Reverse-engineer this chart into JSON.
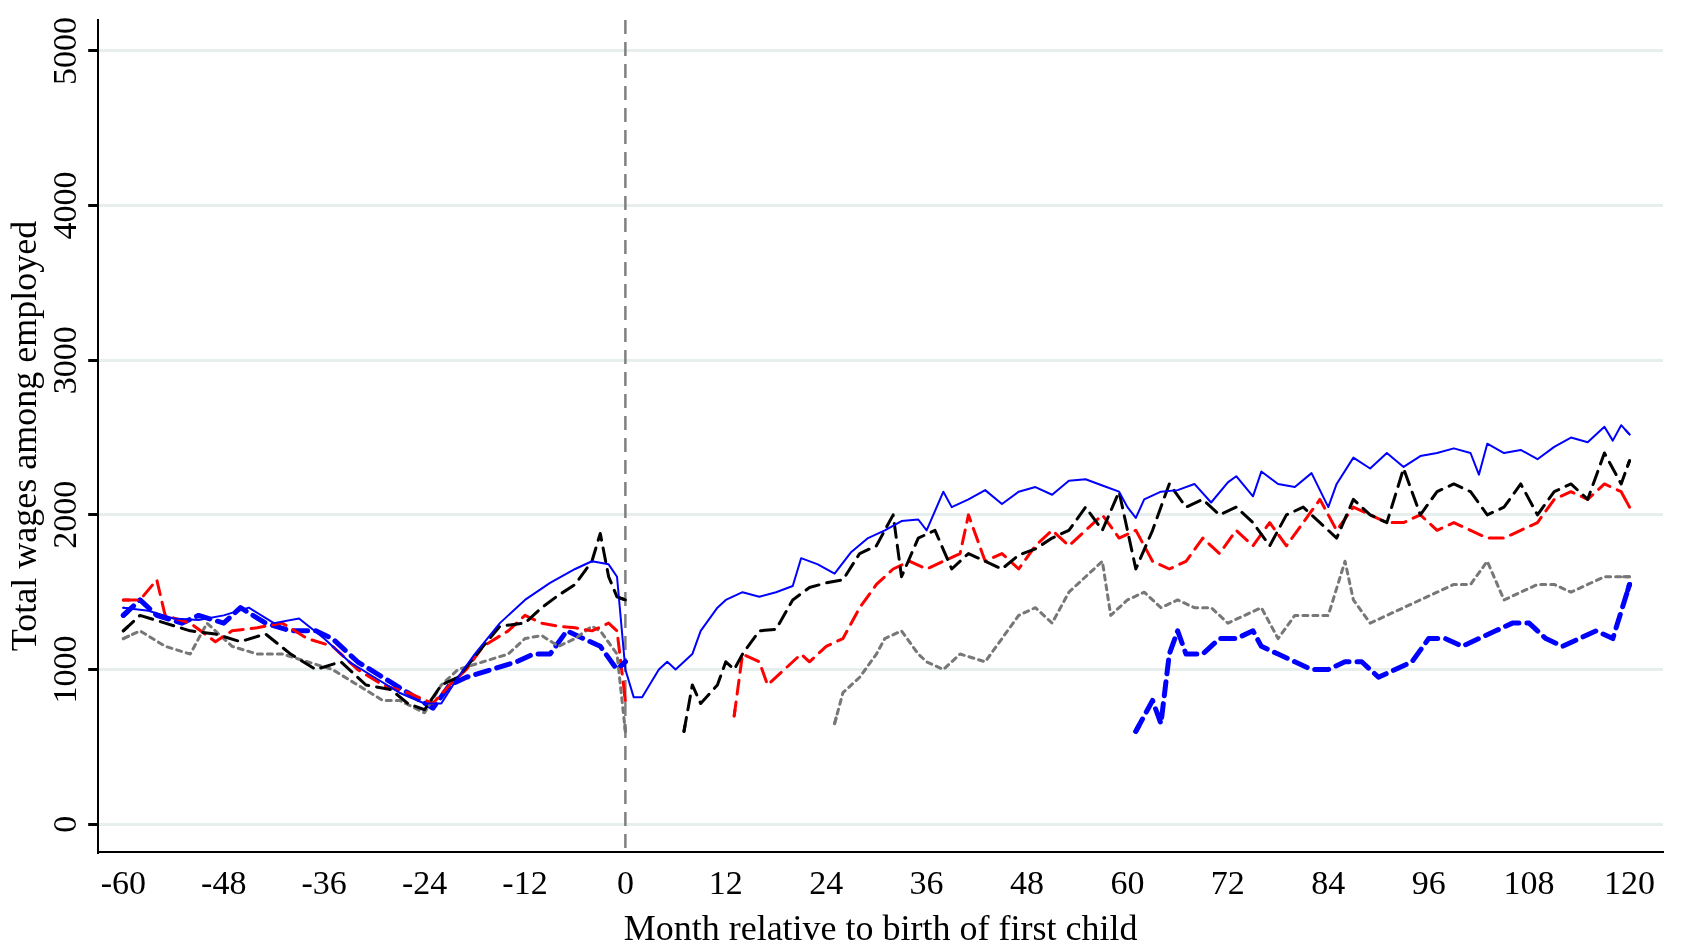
{
  "chart_data": {
    "type": "line",
    "xlabel": "Month relative to birth of first child",
    "ylabel": "Total wages among employed",
    "xlim": [
      -63,
      124
    ],
    "xticks": [
      -60,
      -48,
      -36,
      -24,
      -12,
      0,
      12,
      24,
      36,
      48,
      60,
      72,
      84,
      96,
      108,
      120
    ],
    "ylim": [
      -180,
      5200
    ],
    "yticks": [
      0,
      1000,
      2000,
      3000,
      4000,
      5000
    ],
    "grid": "y",
    "legend": false,
    "marker": "none",
    "ref_lines": [
      {
        "axis": "x",
        "value": 0,
        "color": "#808080",
        "line_style": "dashed"
      }
    ],
    "series": [
      {
        "color": "#0000ff",
        "line_style": "solid",
        "x": [
          -60,
          -57,
          -54,
          -51,
          -48,
          -45,
          -42,
          -39,
          -36,
          -33,
          -30,
          -27,
          -24,
          -22,
          -20,
          -18,
          -15,
          -12,
          -9,
          -6,
          -4,
          -2,
          -1,
          0,
          1,
          2,
          4,
          5,
          6,
          8,
          9,
          11,
          12,
          14,
          16,
          18,
          20,
          21,
          23,
          25,
          27,
          29,
          31,
          33,
          35,
          36,
          38,
          39,
          41,
          43,
          45,
          47,
          49,
          51,
          53,
          55,
          57,
          59,
          60,
          61,
          62,
          64,
          66,
          68,
          70,
          72,
          73,
          75,
          76,
          78,
          80,
          82,
          84,
          85,
          87,
          89,
          91,
          93,
          95,
          97,
          99,
          101,
          102,
          103,
          105,
          107,
          109,
          111,
          113,
          115,
          117,
          118,
          119,
          120
        ],
        "values": [
          1400,
          1380,
          1330,
          1320,
          1350,
          1400,
          1300,
          1330,
          1200,
          1050,
          950,
          850,
          780,
          780,
          950,
          1100,
          1300,
          1450,
          1560,
          1650,
          1700,
          1680,
          1600,
          1000,
          820,
          820,
          1000,
          1050,
          1000,
          1100,
          1250,
          1400,
          1450,
          1500,
          1470,
          1500,
          1540,
          1720,
          1680,
          1620,
          1760,
          1850,
          1900,
          1960,
          1970,
          1900,
          2150,
          2050,
          2100,
          2160,
          2070,
          2150,
          2180,
          2130,
          2220,
          2230,
          2190,
          2150,
          2050,
          1980,
          2100,
          2150,
          2160,
          2200,
          2080,
          2210,
          2250,
          2120,
          2280,
          2200,
          2180,
          2270,
          2050,
          2200,
          2370,
          2300,
          2400,
          2310,
          2380,
          2400,
          2430,
          2400,
          2260,
          2460,
          2400,
          2420,
          2360,
          2440,
          2500,
          2470,
          2570,
          2480,
          2580,
          2520
        ]
      },
      {
        "color": "#000000",
        "line_style": "dashed",
        "x": [
          -60,
          -58,
          -55,
          -52,
          -49,
          -46,
          -43,
          -40,
          -37,
          -34,
          -31,
          -28,
          -26,
          -24,
          -22,
          -20,
          -17,
          -15,
          -12,
          -10,
          -8,
          -6,
          -4,
          -3,
          -2,
          -1,
          0,
          3,
          7,
          8,
          9,
          11,
          12,
          13,
          14,
          16,
          18,
          20,
          22,
          24,
          26,
          28,
          30,
          32,
          33,
          35,
          37,
          39,
          41,
          43,
          45,
          47,
          49,
          51,
          53,
          55,
          57,
          59,
          61,
          63,
          65,
          67,
          69,
          71,
          73,
          75,
          77,
          79,
          81,
          83,
          85,
          87,
          89,
          91,
          93,
          95,
          97,
          99,
          101,
          103,
          105,
          107,
          109,
          111,
          113,
          115,
          117,
          119,
          120
        ],
        "values": [
          1250,
          1350,
          1300,
          1250,
          1230,
          1180,
          1230,
          1100,
          1000,
          1050,
          900,
          870,
          780,
          740,
          900,
          950,
          1150,
          1280,
          1300,
          1400,
          1480,
          1550,
          1700,
          1880,
          1600,
          1470,
          1450,
          null,
          600,
          900,
          780,
          900,
          1050,
          1000,
          1100,
          1250,
          1260,
          1450,
          1530,
          1560,
          1580,
          1750,
          1800,
          2000,
          1600,
          1850,
          1900,
          1650,
          1750,
          1700,
          1650,
          1740,
          1780,
          1850,
          1900,
          2050,
          1900,
          2150,
          1650,
          1900,
          2200,
          2050,
          2100,
          2000,
          2050,
          1950,
          1800,
          2000,
          2050,
          1950,
          1850,
          2100,
          2000,
          1950,
          2300,
          2000,
          2150,
          2200,
          2150,
          2000,
          2050,
          2200,
          2000,
          2150,
          2200,
          2100,
          2400,
          2200,
          2350
        ]
      },
      {
        "color": "#ff0000",
        "line_style": "dashed",
        "x": [
          -60,
          -58,
          -56,
          -55,
          -52,
          -49,
          -47,
          -44,
          -41,
          -38,
          -35,
          -32,
          -29,
          -26,
          -23,
          -21,
          -19,
          -17,
          -14,
          -12,
          -10,
          -8,
          -6,
          -4,
          -2,
          -1,
          0,
          6,
          13,
          14,
          16,
          17,
          19,
          21,
          22,
          24,
          26,
          28,
          30,
          32,
          34,
          36,
          38,
          40,
          41,
          43,
          45,
          47,
          49,
          51,
          53,
          55,
          57,
          59,
          61,
          63,
          65,
          67,
          69,
          71,
          73,
          75,
          77,
          79,
          81,
          83,
          85,
          87,
          89,
          91,
          93,
          95,
          97,
          99,
          101,
          103,
          105,
          107,
          109,
          111,
          113,
          115,
          117,
          119,
          120
        ],
        "values": [
          1450,
          1450,
          1580,
          1350,
          1300,
          1180,
          1250,
          1270,
          1300,
          1200,
          1150,
          1000,
          900,
          850,
          780,
          900,
          1000,
          1150,
          1250,
          1350,
          1300,
          1280,
          1270,
          1250,
          1300,
          1250,
          800,
          null,
          700,
          1100,
          1050,
          900,
          1000,
          1100,
          1050,
          1150,
          1200,
          1400,
          1550,
          1650,
          1700,
          1650,
          1700,
          1750,
          2000,
          1700,
          1750,
          1650,
          1800,
          1900,
          1800,
          1900,
          2000,
          1850,
          1900,
          1700,
          1650,
          1700,
          1850,
          1750,
          1900,
          1800,
          1950,
          1800,
          1950,
          2100,
          1900,
          2050,
          2000,
          1950,
          1950,
          2000,
          1900,
          1950,
          1900,
          1850,
          1850,
          1900,
          1950,
          2100,
          2150,
          2100,
          2200,
          2150,
          2050
        ]
      },
      {
        "color": "#777777",
        "line_style": "dotted",
        "x": [
          -60,
          -58,
          -55,
          -52,
          -50,
          -47,
          -44,
          -41,
          -38,
          -35,
          -32,
          -29,
          -27,
          -24,
          -22,
          -20,
          -17,
          -14,
          -12,
          -10,
          -8,
          -6,
          -4,
          -3,
          -1,
          0,
          12,
          25,
          26,
          28,
          30,
          31,
          33,
          35,
          36,
          38,
          40,
          43,
          45,
          47,
          49,
          51,
          53,
          55,
          57,
          58,
          60,
          62,
          64,
          66,
          68,
          70,
          72,
          74,
          76,
          78,
          80,
          82,
          84,
          86,
          87,
          89,
          91,
          93,
          95,
          97,
          99,
          101,
          103,
          105,
          107,
          109,
          111,
          113,
          115,
          117,
          120
        ],
        "values": [
          1200,
          1250,
          1150,
          1100,
          1300,
          1150,
          1100,
          1100,
          1050,
          1000,
          900,
          800,
          800,
          720,
          900,
          1000,
          1050,
          1100,
          1200,
          1220,
          1150,
          1200,
          1280,
          1250,
          1100,
          600,
          null,
          650,
          850,
          950,
          1100,
          1200,
          1250,
          1100,
          1050,
          1000,
          1100,
          1050,
          1200,
          1350,
          1400,
          1300,
          1500,
          1600,
          1700,
          1350,
          1450,
          1500,
          1400,
          1450,
          1400,
          1400,
          1300,
          1350,
          1400,
          1200,
          1350,
          1350,
          1350,
          1700,
          1450,
          1300,
          1350,
          1400,
          1450,
          1500,
          1550,
          1550,
          1700,
          1450,
          1500,
          1550,
          1550,
          1500,
          1550,
          1600,
          1600
        ]
      },
      {
        "color": "#0000ff",
        "line_style": "dashed",
        "x": [
          -60,
          -58,
          -56,
          -53,
          -51,
          -48,
          -46,
          -43,
          -40,
          -37,
          -35,
          -32,
          -29,
          -26,
          -23,
          -21,
          -19,
          -16,
          -13,
          -11,
          -9,
          -7,
          -5,
          -3,
          -1,
          0,
          30,
          61,
          63,
          64,
          65,
          66,
          67,
          69,
          71,
          73,
          75,
          76,
          78,
          80,
          82,
          84,
          86,
          88,
          90,
          92,
          94,
          96,
          98,
          100,
          102,
          104,
          106,
          108,
          110,
          112,
          114,
          116,
          118,
          120
        ],
        "values": [
          1350,
          1450,
          1350,
          1300,
          1350,
          1300,
          1400,
          1300,
          1250,
          1250,
          1200,
          1050,
          950,
          850,
          750,
          900,
          950,
          1000,
          1050,
          1100,
          1100,
          1250,
          1200,
          1150,
          1000,
          1050,
          null,
          600,
          800,
          650,
          1100,
          1250,
          1100,
          1100,
          1200,
          1200,
          1250,
          1150,
          1100,
          1050,
          1000,
          1000,
          1050,
          1050,
          950,
          1000,
          1050,
          1200,
          1200,
          1150,
          1200,
          1250,
          1300,
          1300,
          1200,
          1150,
          1200,
          1250,
          1200,
          1550
        ]
      }
    ]
  }
}
